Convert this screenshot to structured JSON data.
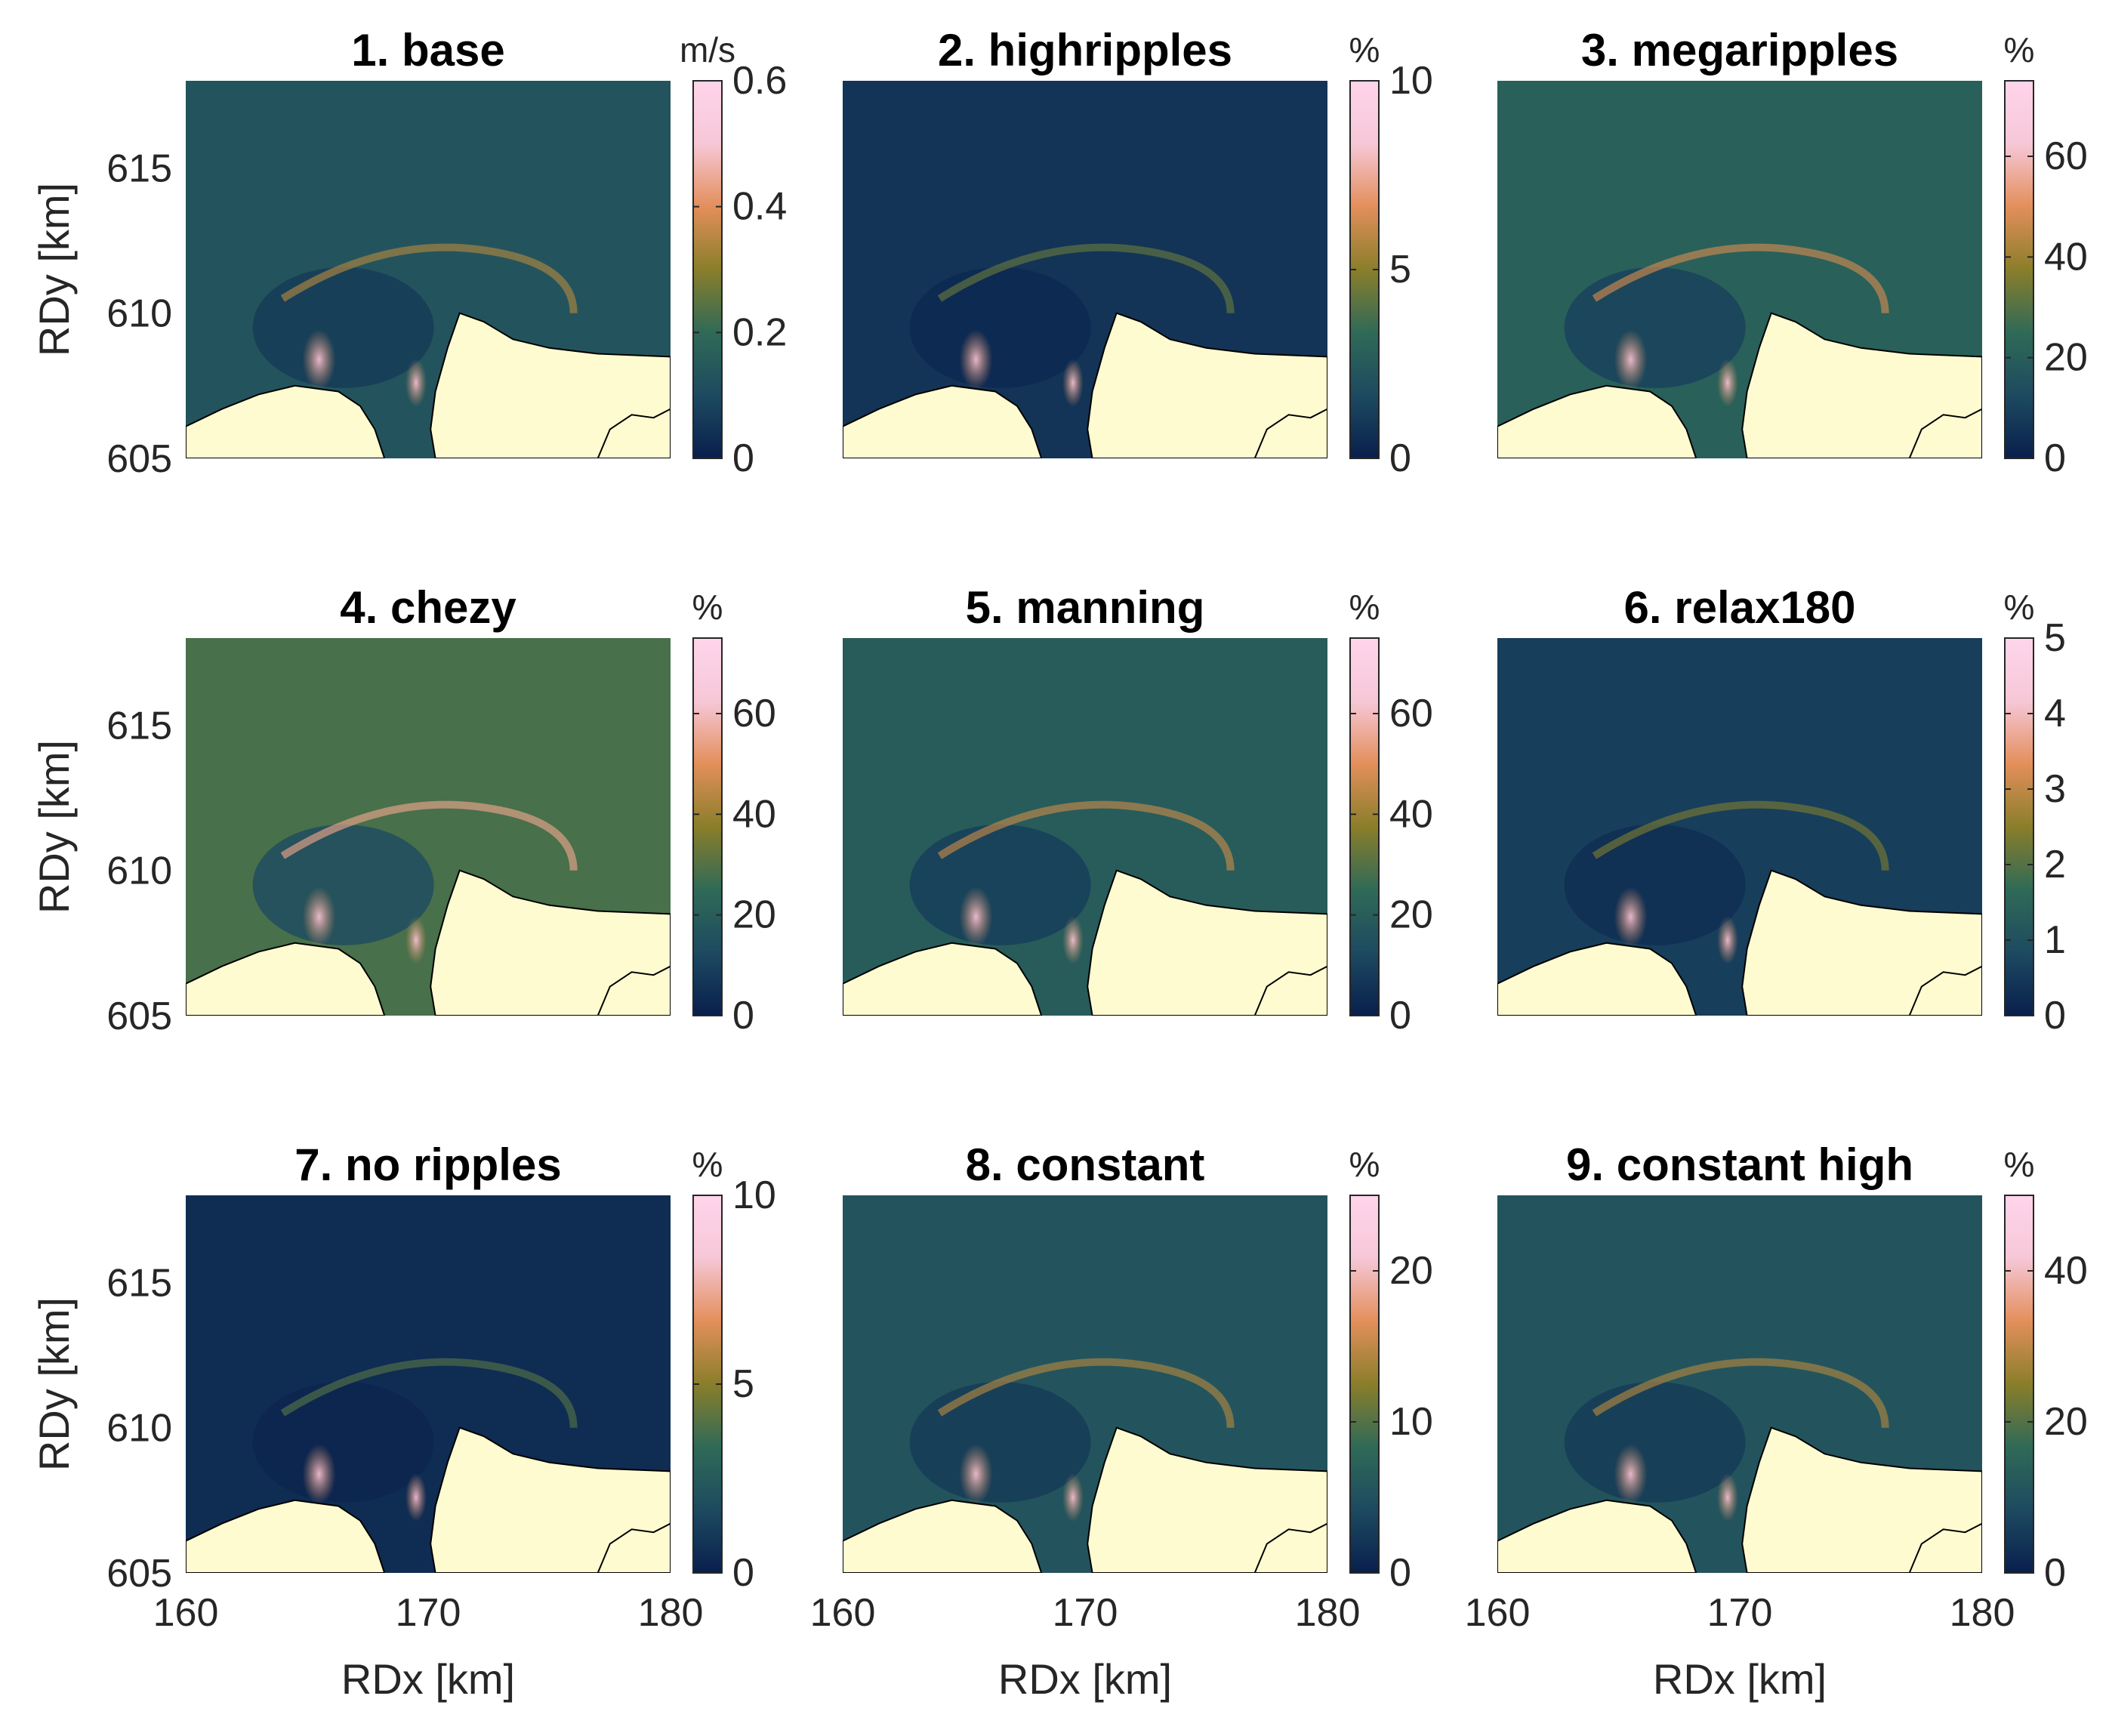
{
  "chart_data": {
    "type": "heatmap",
    "colormap": [
      "#091f4d",
      "#1d4a60",
      "#2f6a57",
      "#8a7e2a",
      "#e38f5b",
      "#f6c7d7",
      "#ffd5eb"
    ],
    "land_color": "#fffbd1",
    "xlabel": "RDx [km]",
    "ylabel": "RDy [km]",
    "xlim": [
      160,
      180
    ],
    "ylim": [
      605,
      618
    ],
    "xticks": [
      "160",
      "170",
      "180"
    ],
    "yticks": [
      "605",
      "610",
      "615"
    ],
    "panels": [
      {
        "title": "1. base",
        "unit": "m/s",
        "clim": [
          0,
          0.6
        ],
        "cticks": [
          "0",
          "0.2",
          "0.4",
          "0.6"
        ],
        "cvals": [
          0,
          0.2,
          0.4,
          0.6
        ],
        "level": 0.22
      },
      {
        "title": "2. highripples",
        "unit": "%",
        "clim": [
          0,
          10
        ],
        "cticks": [
          "0",
          "5",
          "10"
        ],
        "cvals": [
          0,
          5,
          10
        ],
        "level": 0.08
      },
      {
        "title": "3. megaripples",
        "unit": "%",
        "clim": [
          0,
          75
        ],
        "cticks": [
          "0",
          "20",
          "40",
          "60"
        ],
        "cvals": [
          0,
          20,
          40,
          60
        ],
        "level": 0.28
      },
      {
        "title": "4. chezy",
        "unit": "%",
        "clim": [
          0,
          75
        ],
        "cticks": [
          "0",
          "20",
          "40",
          "60"
        ],
        "cvals": [
          0,
          20,
          40,
          60
        ],
        "level": 0.38
      },
      {
        "title": "5. manning",
        "unit": "%",
        "clim": [
          0,
          75
        ],
        "cticks": [
          "0",
          "20",
          "40",
          "60"
        ],
        "cvals": [
          0,
          20,
          40,
          60
        ],
        "level": 0.26
      },
      {
        "title": "6. relax180",
        "unit": "%",
        "clim": [
          0,
          5
        ],
        "cticks": [
          "0",
          "1",
          "2",
          "3",
          "4",
          "5"
        ],
        "cvals": [
          0,
          1,
          2,
          3,
          4,
          5
        ],
        "level": 0.12
      },
      {
        "title": "7. no ripples",
        "unit": "%",
        "clim": [
          0,
          10
        ],
        "cticks": [
          "0",
          "5",
          "10"
        ],
        "cvals": [
          0,
          5,
          10
        ],
        "level": 0.05
      },
      {
        "title": "8. constant",
        "unit": "%",
        "clim": [
          0,
          25
        ],
        "cticks": [
          "0",
          "10",
          "20"
        ],
        "cvals": [
          0,
          10,
          20
        ],
        "level": 0.22
      },
      {
        "title": "9. constant high",
        "unit": "%",
        "clim": [
          0,
          50
        ],
        "cticks": [
          "0",
          "20",
          "40"
        ],
        "cvals": [
          0,
          20,
          40
        ],
        "level": 0.22
      }
    ]
  }
}
